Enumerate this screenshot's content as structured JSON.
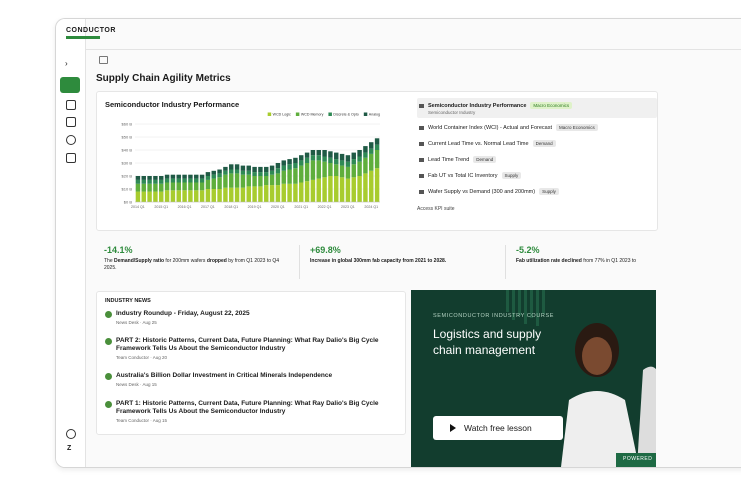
{
  "brand": {
    "name": "CONDUCTOR"
  },
  "page": {
    "title": "Supply Chain Agility Metrics"
  },
  "chart_data": {
    "type": "stacked-bar",
    "title": "Semiconductor Industry Performance",
    "legend": "top-right",
    "categories": [
      "2014 Q1",
      null,
      null,
      null,
      "2015 Q1",
      null,
      null,
      null,
      "2016 Q1",
      null,
      null,
      null,
      "2017 Q1",
      null,
      null,
      null,
      "2018 Q1",
      null,
      null,
      null,
      "2019 Q1",
      null,
      null,
      null,
      "2020 Q1",
      null,
      null,
      null,
      "2021 Q1",
      null,
      null,
      null,
      "2022 Q1",
      null,
      null,
      null,
      "2023 Q1",
      null,
      null,
      null,
      "2024 Q1",
      null
    ],
    "series": [
      {
        "name": "WCD Logic",
        "color": "#a8cc2e",
        "values": [
          8,
          8,
          8,
          8,
          8,
          9,
          9,
          9,
          9,
          9,
          9,
          9,
          10,
          10,
          10,
          11,
          11,
          11,
          11,
          12,
          12,
          12,
          13,
          13,
          13,
          14,
          14,
          14,
          15,
          16,
          17,
          18,
          19,
          20,
          20,
          19,
          18,
          19,
          20,
          22,
          24,
          26
        ]
      },
      {
        "name": "WCD Memory",
        "color": "#5fae3c",
        "values": [
          6,
          6,
          6,
          6,
          6,
          6,
          6,
          6,
          6,
          6,
          6,
          6,
          7,
          8,
          9,
          10,
          11,
          11,
          10,
          9,
          8,
          8,
          7,
          8,
          9,
          10,
          11,
          12,
          13,
          14,
          15,
          14,
          12,
          10,
          9,
          9,
          9,
          10,
          11,
          12,
          13,
          14
        ]
      },
      {
        "name": "Discrete & Opto",
        "color": "#2f8a55",
        "values": [
          3,
          3,
          3,
          3,
          3,
          3,
          3,
          3,
          3,
          3,
          3,
          3,
          3,
          3,
          3,
          3,
          3,
          3,
          3,
          3,
          3,
          3,
          3,
          3,
          4,
          4,
          4,
          4,
          4,
          4,
          4,
          4,
          4,
          4,
          4,
          4,
          4,
          4,
          4,
          4,
          4,
          4
        ]
      },
      {
        "name": "Analog",
        "color": "#1f5a45",
        "values": [
          3,
          3,
          3,
          3,
          3,
          3,
          3,
          3,
          3,
          3,
          3,
          3,
          3,
          3,
          3,
          3,
          4,
          4,
          4,
          4,
          4,
          4,
          4,
          4,
          4,
          4,
          4,
          4,
          4,
          4,
          4,
          4,
          5,
          5,
          5,
          5,
          5,
          5,
          5,
          5,
          5,
          5
        ]
      }
    ],
    "ylim": [
      0,
      60
    ],
    "yticks": [
      {
        "value": 0,
        "label": "$0 B"
      },
      {
        "value": 10,
        "label": "$10 B"
      },
      {
        "value": 20,
        "label": "$20 B"
      },
      {
        "value": 30,
        "label": "$30 B"
      },
      {
        "value": 40,
        "label": "$40 B"
      },
      {
        "value": 50,
        "label": "$50 B"
      },
      {
        "value": 60,
        "label": "$60 B"
      }
    ],
    "grid": true
  },
  "metrics_list": [
    {
      "label": "Semiconductor Industry Performance",
      "tag": "Macro Economics",
      "sub": "Semiconductor Industry"
    },
    {
      "label": "World Container Index (WCI) - Actual and Forecast",
      "tag": "Macro Economics"
    },
    {
      "label": "Current Lead Time vs. Normal Lead Time",
      "tag": "Demand"
    },
    {
      "label": "Lead Time Trend",
      "tag": "Demand"
    },
    {
      "label": "Fab UT vs Total IC Inventory",
      "tag": "Supply"
    },
    {
      "label": "Wafer Supply vs Demand (300 and 200mm)",
      "tag": "Supply"
    }
  ],
  "link": "Access KPI suite",
  "kpis": [
    {
      "value": "-14.1%",
      "text": [
        "The ",
        "Demand/Supply ratio",
        " for 200mm wafers ",
        "dropped",
        " by from Q1 2023 to Q4 2025."
      ]
    },
    {
      "value": "+69.8%",
      "text": [
        "Increase in global 300mm fab capacity from 2021 to 2028."
      ]
    },
    {
      "value": "-5.2%",
      "text": [
        "Fab utilization rate declined",
        " from 77% in Q1 2023 to"
      ]
    }
  ],
  "news": {
    "heading": "INDUSTRY NEWS",
    "items": [
      {
        "title": "Industry Roundup - Friday, August 22, 2025",
        "meta": "News Desk · Aug 25"
      },
      {
        "title": "PART 2: Historic Patterns, Current Data, Future Planning: What Ray Dalio's Big Cycle Framework Tells Us About the Semiconductor Industry",
        "meta": "Team Conductor · Aug 20"
      },
      {
        "title": "Australia's Billion Dollar Investment in Critical Minerals Independence",
        "meta": "News Desk · Aug 15"
      },
      {
        "title": "PART 1: Historic Patterns, Current Data, Future Planning: What Ray Dalio's Big Cycle Framework Tells Us About the Semiconductor Industry",
        "meta": "Team Conductor · Aug 15"
      }
    ]
  },
  "course": {
    "eyebrow": "SEMICONDUCTOR INDUSTRY COURSE",
    "title": "Logistics and supply chain management",
    "button": "Watch free lesson",
    "footer": "POWERED"
  }
}
